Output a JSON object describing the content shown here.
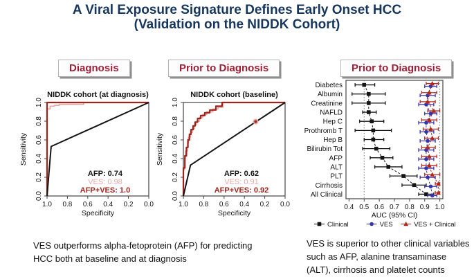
{
  "title": {
    "line1": "A Viral Exposure Signature Defines Early Onset HCC",
    "line2": "(Validation on the NIDDK Cohort)"
  },
  "panel_headers": [
    {
      "label": "Diagnosis"
    },
    {
      "label": "Prior to Diagnosis"
    },
    {
      "label": "Prior to Diagnosis"
    }
  ],
  "captions": {
    "left": "VES outperforms alpha-fetoprotein (AFP) for predicting\nHCC both at baseline and at diagnosis",
    "right": "VES is superior to other clinical variables\nsuch as AFP, alanine transaminase\n(ALT), cirrhosis and platelet counts"
  },
  "colors": {
    "title_navy": "#17365d",
    "header_crimson": "#a01e35",
    "afp_black": "#141414",
    "ves_pink": "#e8aaa7",
    "afp_ves_darkred": "#9b241c",
    "forest_blue": "#3434ad",
    "forest_red": "#b0281e"
  },
  "chart_data": [
    {
      "type": "line",
      "variant": "roc",
      "title": "NIDDK cohort (at diagnosis)",
      "xlabel": "Specificity",
      "ylabel": "Sensitivity",
      "x_axis_reversed": true,
      "x_ticks": [
        1.0,
        0.8,
        0.6,
        0.4,
        0.2,
        0.0
      ],
      "y_ticks": [
        0.0,
        0.2,
        0.4,
        0.6,
        0.8,
        1.0
      ],
      "series": [
        {
          "name": "VES",
          "auc": 0.98,
          "color": "#e8aaa7",
          "width": 1.8,
          "points": [
            [
              1,
              0
            ],
            [
              1,
              0.93
            ],
            [
              0.97,
              0.93
            ],
            [
              0.97,
              0.96
            ],
            [
              0.93,
              0.96
            ],
            [
              0.93,
              0.97
            ],
            [
              0.88,
              0.97
            ],
            [
              0.88,
              0.98
            ],
            [
              0.64,
              0.98
            ],
            [
              0.64,
              1
            ],
            [
              0,
              1
            ]
          ]
        },
        {
          "name": "AFP+VES",
          "auc": 1.0,
          "color": "#9b241c",
          "width": 2.2,
          "points": [
            [
              1,
              0
            ],
            [
              1,
              1
            ],
            [
              0,
              1
            ]
          ]
        },
        {
          "name": "AFP",
          "auc": 0.74,
          "color": "#141414",
          "width": 2,
          "points": [
            [
              1,
              0
            ],
            [
              0.96,
              0.53
            ],
            [
              0,
              1
            ]
          ]
        }
      ],
      "annotations": [
        {
          "text": "AFP: 0.74",
          "color": "#141414",
          "bold": true
        },
        {
          "text": "VES: 0.98",
          "color": "#e8aaa7",
          "bold": false
        },
        {
          "text": "AFP+VES: 1.0",
          "color": "#9b241c",
          "bold": true
        }
      ]
    },
    {
      "type": "line",
      "variant": "roc",
      "title": "NIDDK cohort (baseline)",
      "xlabel": "Specificity",
      "ylabel": "Sensitivity",
      "x_axis_reversed": true,
      "x_ticks": [
        1.0,
        0.8,
        0.6,
        0.4,
        0.2,
        0.0
      ],
      "y_ticks": [
        0.0,
        0.2,
        0.4,
        0.6,
        0.8,
        1.0
      ],
      "series": [
        {
          "name": "VES",
          "auc": 0.91,
          "color": "#e8aaa7",
          "width": 1.8,
          "points": [
            [
              1,
              0
            ],
            [
              1,
              0.28
            ],
            [
              0.99,
              0.28
            ],
            [
              0.99,
              0.4
            ],
            [
              0.98,
              0.4
            ],
            [
              0.98,
              0.48
            ],
            [
              0.96,
              0.48
            ],
            [
              0.96,
              0.57
            ],
            [
              0.95,
              0.57
            ],
            [
              0.95,
              0.63
            ],
            [
              0.93,
              0.63
            ],
            [
              0.93,
              0.68
            ],
            [
              0.91,
              0.68
            ],
            [
              0.91,
              0.72
            ],
            [
              0.89,
              0.72
            ],
            [
              0.89,
              0.76
            ],
            [
              0.87,
              0.76
            ],
            [
              0.87,
              0.8
            ],
            [
              0.84,
              0.8
            ],
            [
              0.84,
              0.84
            ],
            [
              0.81,
              0.84
            ],
            [
              0.81,
              0.87
            ],
            [
              0.77,
              0.87
            ],
            [
              0.77,
              0.9
            ],
            [
              0.71,
              0.9
            ],
            [
              0.71,
              0.93
            ],
            [
              0.66,
              0.93
            ],
            [
              0.66,
              0.95
            ],
            [
              0.61,
              0.95
            ],
            [
              0.61,
              1
            ],
            [
              0,
              1
            ]
          ]
        },
        {
          "name": "AFP+VES",
          "auc": 0.92,
          "color": "#9b241c",
          "width": 2.2,
          "points": [
            [
              1,
              0
            ],
            [
              1,
              0.3
            ],
            [
              0.985,
              0.3
            ],
            [
              0.985,
              0.43
            ],
            [
              0.97,
              0.43
            ],
            [
              0.97,
              0.52
            ],
            [
              0.955,
              0.52
            ],
            [
              0.955,
              0.6
            ],
            [
              0.94,
              0.6
            ],
            [
              0.94,
              0.66
            ],
            [
              0.925,
              0.66
            ],
            [
              0.925,
              0.71
            ],
            [
              0.905,
              0.71
            ],
            [
              0.905,
              0.75
            ],
            [
              0.885,
              0.75
            ],
            [
              0.885,
              0.79
            ],
            [
              0.86,
              0.79
            ],
            [
              0.86,
              0.83
            ],
            [
              0.83,
              0.83
            ],
            [
              0.83,
              0.86
            ],
            [
              0.79,
              0.86
            ],
            [
              0.79,
              0.89
            ],
            [
              0.74,
              0.89
            ],
            [
              0.74,
              0.92
            ],
            [
              0.68,
              0.92
            ],
            [
              0.68,
              0.96
            ],
            [
              0.62,
              0.96
            ],
            [
              0.62,
              1
            ],
            [
              0,
              1
            ]
          ]
        },
        {
          "name": "AFP",
          "auc": 0.62,
          "color": "#141414",
          "width": 2,
          "points": [
            [
              1,
              0
            ],
            [
              0.93,
              0.33
            ],
            [
              0,
              1
            ]
          ]
        }
      ],
      "marker": {
        "x": 0.29,
        "y": 0.795,
        "fill": "#9b241c",
        "halo": "#e8aaa7"
      },
      "annotations": [
        {
          "text": "AFP: 0.62",
          "color": "#141414",
          "bold": true
        },
        {
          "text": "VES: 0.91",
          "color": "#e8aaa7",
          "bold": false
        },
        {
          "text": "AFP+VES: 0.92",
          "color": "#9b241c",
          "bold": true
        }
      ]
    },
    {
      "type": "forest",
      "xlabel": "AUC (95% CI)",
      "xlim": [
        0.38,
        1.02
      ],
      "x_ticks": [
        0.4,
        0.5,
        0.6,
        0.7,
        0.8,
        0.9,
        1.0
      ],
      "ref_lines": [
        0.5,
        1.0
      ],
      "categories": [
        "Diabetes",
        "Albumin",
        "Creatinine",
        "NAFLD",
        "Hep C",
        "Prothromb T",
        "Hep B",
        "Bilirubin Tot",
        "AFP",
        "ALT",
        "PLT",
        "Cirrhosis",
        "All Clinical"
      ],
      "series": [
        {
          "name": "Clinical",
          "marker": "square",
          "color": "#141414",
          "dy": 0,
          "values": [
            0.5,
            0.53,
            0.53,
            0.53,
            0.55,
            0.56,
            0.56,
            0.58,
            0.62,
            0.66,
            0.76,
            0.83,
            0.91
          ],
          "ci_low": [
            0.44,
            0.42,
            0.42,
            0.49,
            0.47,
            0.44,
            0.5,
            0.49,
            0.54,
            0.57,
            0.67,
            0.75,
            0.86
          ],
          "ci_high": [
            0.57,
            0.64,
            0.64,
            0.58,
            0.63,
            0.68,
            0.63,
            0.67,
            0.69,
            0.75,
            0.85,
            0.91,
            0.96
          ]
        },
        {
          "name": "VES",
          "marker": "circle",
          "color": "#3434ad",
          "dy": 2,
          "values": [
            0.94,
            0.92,
            0.91,
            0.94,
            0.91,
            0.91,
            0.92,
            0.91,
            0.91,
            0.91,
            0.92,
            0.94,
            0.95
          ],
          "ci_low": [
            0.9,
            0.87,
            0.86,
            0.9,
            0.86,
            0.87,
            0.87,
            0.86,
            0.86,
            0.86,
            0.87,
            0.9,
            0.92
          ],
          "ci_high": [
            0.98,
            0.97,
            0.96,
            0.98,
            0.96,
            0.96,
            0.97,
            0.96,
            0.96,
            0.96,
            0.97,
            0.98,
            0.98
          ]
        },
        {
          "name": "VES + Clinical",
          "marker": "triangle",
          "color": "#b0281e",
          "dy": -2,
          "values": [
            0.95,
            0.93,
            0.92,
            0.96,
            0.93,
            0.94,
            0.95,
            0.92,
            0.93,
            0.93,
            0.95,
            0.99,
            0.99
          ],
          "ci_low": [
            0.91,
            0.88,
            0.87,
            0.92,
            0.88,
            0.89,
            0.9,
            0.88,
            0.88,
            0.88,
            0.9,
            0.97,
            0.97
          ],
          "ci_high": [
            0.99,
            0.98,
            0.97,
            1.0,
            0.98,
            0.99,
            0.99,
            0.97,
            0.98,
            0.98,
            1.0,
            1.0,
            1.0
          ]
        }
      ],
      "legend_position": "bottom"
    }
  ]
}
